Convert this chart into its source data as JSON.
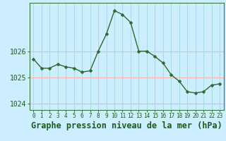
{
  "x": [
    0,
    1,
    2,
    3,
    4,
    5,
    6,
    7,
    8,
    9,
    10,
    11,
    12,
    13,
    14,
    15,
    16,
    17,
    18,
    19,
    20,
    21,
    22,
    23
  ],
  "y": [
    1025.7,
    1025.35,
    1025.35,
    1025.5,
    1025.4,
    1025.35,
    1025.2,
    1025.25,
    1026.0,
    1026.65,
    1027.55,
    1027.4,
    1027.1,
    1026.0,
    1026.0,
    1025.8,
    1025.55,
    1025.1,
    1024.85,
    1024.45,
    1024.4,
    1024.45,
    1024.7,
    1024.75
  ],
  "line_color": "#2d6a2d",
  "marker": "D",
  "marker_size": 2.5,
  "background_color": "#cceeff",
  "plot_bg_color": "#cceeff",
  "grid_color_h": "#ffb0b0",
  "grid_color_v": "#aadddd",
  "title": "Graphe pression niveau de la mer (hPa)",
  "title_color": "#1a5c1a",
  "title_fontsize": 8.5,
  "ylim": [
    1023.75,
    1027.85
  ],
  "yticks": [
    1024,
    1025,
    1026
  ],
  "ytick_fontsize": 7,
  "xtick_fontsize": 5.5,
  "axis_color": "#2d6a2d",
  "tick_color": "#1a5c1a",
  "spine_color": "#3a7a3a"
}
